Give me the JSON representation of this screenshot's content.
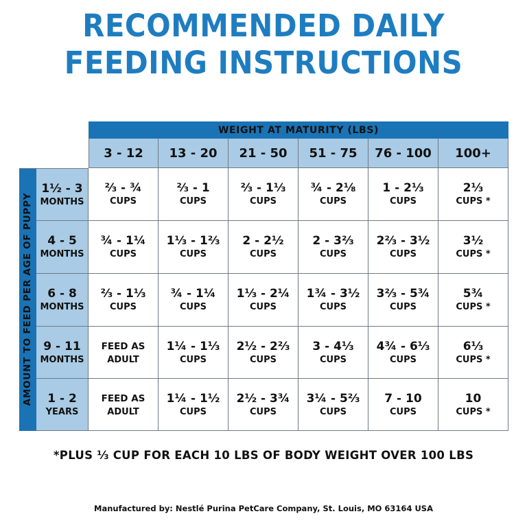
{
  "title": {
    "line1": "RECOMMENDED DAILY",
    "line2": "FEEDING INSTRUCTIONS"
  },
  "table": {
    "header": "WEIGHT AT MATURITY (LBS)",
    "side_label": "AMOUNT TO FEED PER AGE OF PUPPY",
    "columns": [
      "3 - 12",
      "13 - 20",
      "21 - 50",
      "51 - 75",
      "76 - 100",
      "100+"
    ],
    "rows": [
      {
        "age": "1½ - 3",
        "unit": "MONTHS",
        "cells": [
          {
            "amount": "⅔ - ¾",
            "unit": "CUPS"
          },
          {
            "amount": "⅔ - 1",
            "unit": "CUPS"
          },
          {
            "amount": "⅔ - 1⅓",
            "unit": "CUPS"
          },
          {
            "amount": "¾ - 2⅛",
            "unit": "CUPS"
          },
          {
            "amount": "1 - 2⅓",
            "unit": "CUPS"
          },
          {
            "amount": "2⅓",
            "unit": "CUPS *"
          }
        ]
      },
      {
        "age": "4 - 5",
        "unit": "MONTHS",
        "cells": [
          {
            "amount": "¾ - 1¼",
            "unit": "CUPS"
          },
          {
            "amount": "1⅓ - 1⅔",
            "unit": "CUPS"
          },
          {
            "amount": "2 - 2½",
            "unit": "CUPS"
          },
          {
            "amount": "2 - 3⅔",
            "unit": "CUPS"
          },
          {
            "amount": "2⅔ - 3½",
            "unit": "CUPS"
          },
          {
            "amount": "3½",
            "unit": "CUPS *"
          }
        ]
      },
      {
        "age": "6 - 8",
        "unit": "MONTHS",
        "cells": [
          {
            "amount": "⅔ - 1⅓",
            "unit": "CUPS"
          },
          {
            "amount": "¾ - 1¼",
            "unit": "CUPS"
          },
          {
            "amount": "1⅓ - 2¼",
            "unit": "CUPS"
          },
          {
            "amount": "1¾ - 3½",
            "unit": "CUPS"
          },
          {
            "amount": "3⅔ - 5¾",
            "unit": "CUPS"
          },
          {
            "amount": "5¾",
            "unit": "CUPS *"
          }
        ]
      },
      {
        "age": "9 - 11",
        "unit": "MONTHS",
        "cells": [
          {
            "amount": "FEED AS",
            "unit": "ADULT"
          },
          {
            "amount": "1¼ - 1⅓",
            "unit": "CUPS"
          },
          {
            "amount": "2½ - 2⅔",
            "unit": "CUPS"
          },
          {
            "amount": "3 - 4⅓",
            "unit": "CUPS"
          },
          {
            "amount": "4¾ - 6⅓",
            "unit": "CUPS"
          },
          {
            "amount": "6⅓",
            "unit": "CUPS *"
          }
        ]
      },
      {
        "age": "1 - 2",
        "unit": "YEARS",
        "cells": [
          {
            "amount": "FEED AS",
            "unit": "ADULT"
          },
          {
            "amount": "1¼ - 1½",
            "unit": "CUPS"
          },
          {
            "amount": "2½ - 3¾",
            "unit": "CUPS"
          },
          {
            "amount": "3¼ - 5⅔",
            "unit": "CUPS"
          },
          {
            "amount": "7 - 10",
            "unit": "CUPS"
          },
          {
            "amount": "10",
            "unit": "CUPS *"
          }
        ]
      }
    ]
  },
  "footnote": "*PLUS ⅓ CUP FOR EACH 10 LBS OF BODY WEIGHT OVER 100 LBS",
  "manufacturer": "Manufactured by: Nestlé Purina PetCare Company, St. Louis, MO 63164 USA",
  "colors": {
    "title": "#1e7dc0",
    "band": "#1a73b4",
    "header_fill": "#a9cbe5",
    "grid": "#6f7a84"
  }
}
